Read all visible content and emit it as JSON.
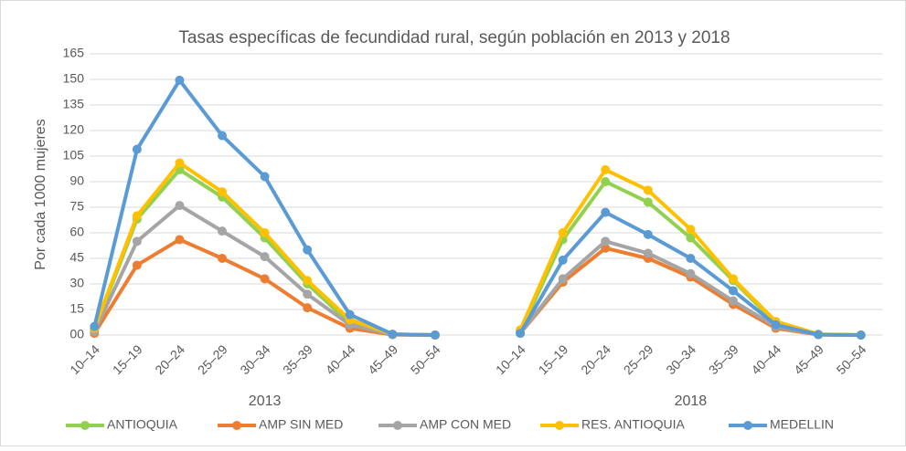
{
  "chart_data": {
    "type": "line",
    "title": "Tasas específicas de fecundidad rural, según población en 2013 y 2018",
    "y_label": "Por cada 1000 mujeres",
    "categories": [
      "10–14",
      "15–19",
      "20–24",
      "25–29",
      "30–34",
      "35–39",
      "40–44",
      "45–49",
      "50–54",
      null,
      "10–14",
      "15–19",
      "20–24",
      "25–29",
      "30–34",
      "35–39",
      "40–44",
      "45–49",
      "50–54"
    ],
    "group_labels": [
      "2013",
      "2018"
    ],
    "series": [
      {
        "name": "ANTIOQUIA",
        "color": "#92d050",
        "values": [
          3,
          68,
          97,
          81,
          57,
          30,
          7,
          0.4,
          0,
          null,
          2,
          56,
          90,
          78,
          57,
          32,
          7,
          0.3,
          0
        ]
      },
      {
        "name": "AMP SIN MED",
        "color": "#ed7d31",
        "values": [
          1,
          41,
          56,
          45,
          33,
          16,
          4,
          0.2,
          0,
          null,
          1,
          31,
          51,
          45,
          34,
          18,
          4,
          0.2,
          0
        ]
      },
      {
        "name": "AMP CON MED",
        "color": "#a5a5a5",
        "values": [
          2,
          55,
          76,
          61,
          46,
          24,
          6,
          0.3,
          0,
          null,
          1,
          33,
          55,
          48,
          36,
          20,
          5,
          0.3,
          0
        ]
      },
      {
        "name": "RES. ANTIOQUIA",
        "color": "#ffc000",
        "values": [
          4,
          70,
          101,
          84,
          60,
          32,
          9,
          0.5,
          0,
          null,
          3,
          60,
          97,
          85,
          62,
          33,
          8,
          0.5,
          0
        ]
      },
      {
        "name": "MEDELLIN",
        "color": "#5b9bd5",
        "values": [
          5,
          109,
          149.5,
          117,
          93,
          50,
          12,
          0.5,
          0,
          null,
          1,
          44,
          72,
          59,
          45,
          26,
          6,
          0.3,
          0
        ]
      }
    ],
    "ylim": [
      0,
      165
    ],
    "yticks": [
      {
        "value": 0,
        "label": "00"
      },
      15,
      30,
      45,
      60,
      75,
      90,
      105,
      120,
      135,
      150,
      165
    ],
    "grid": true
  }
}
